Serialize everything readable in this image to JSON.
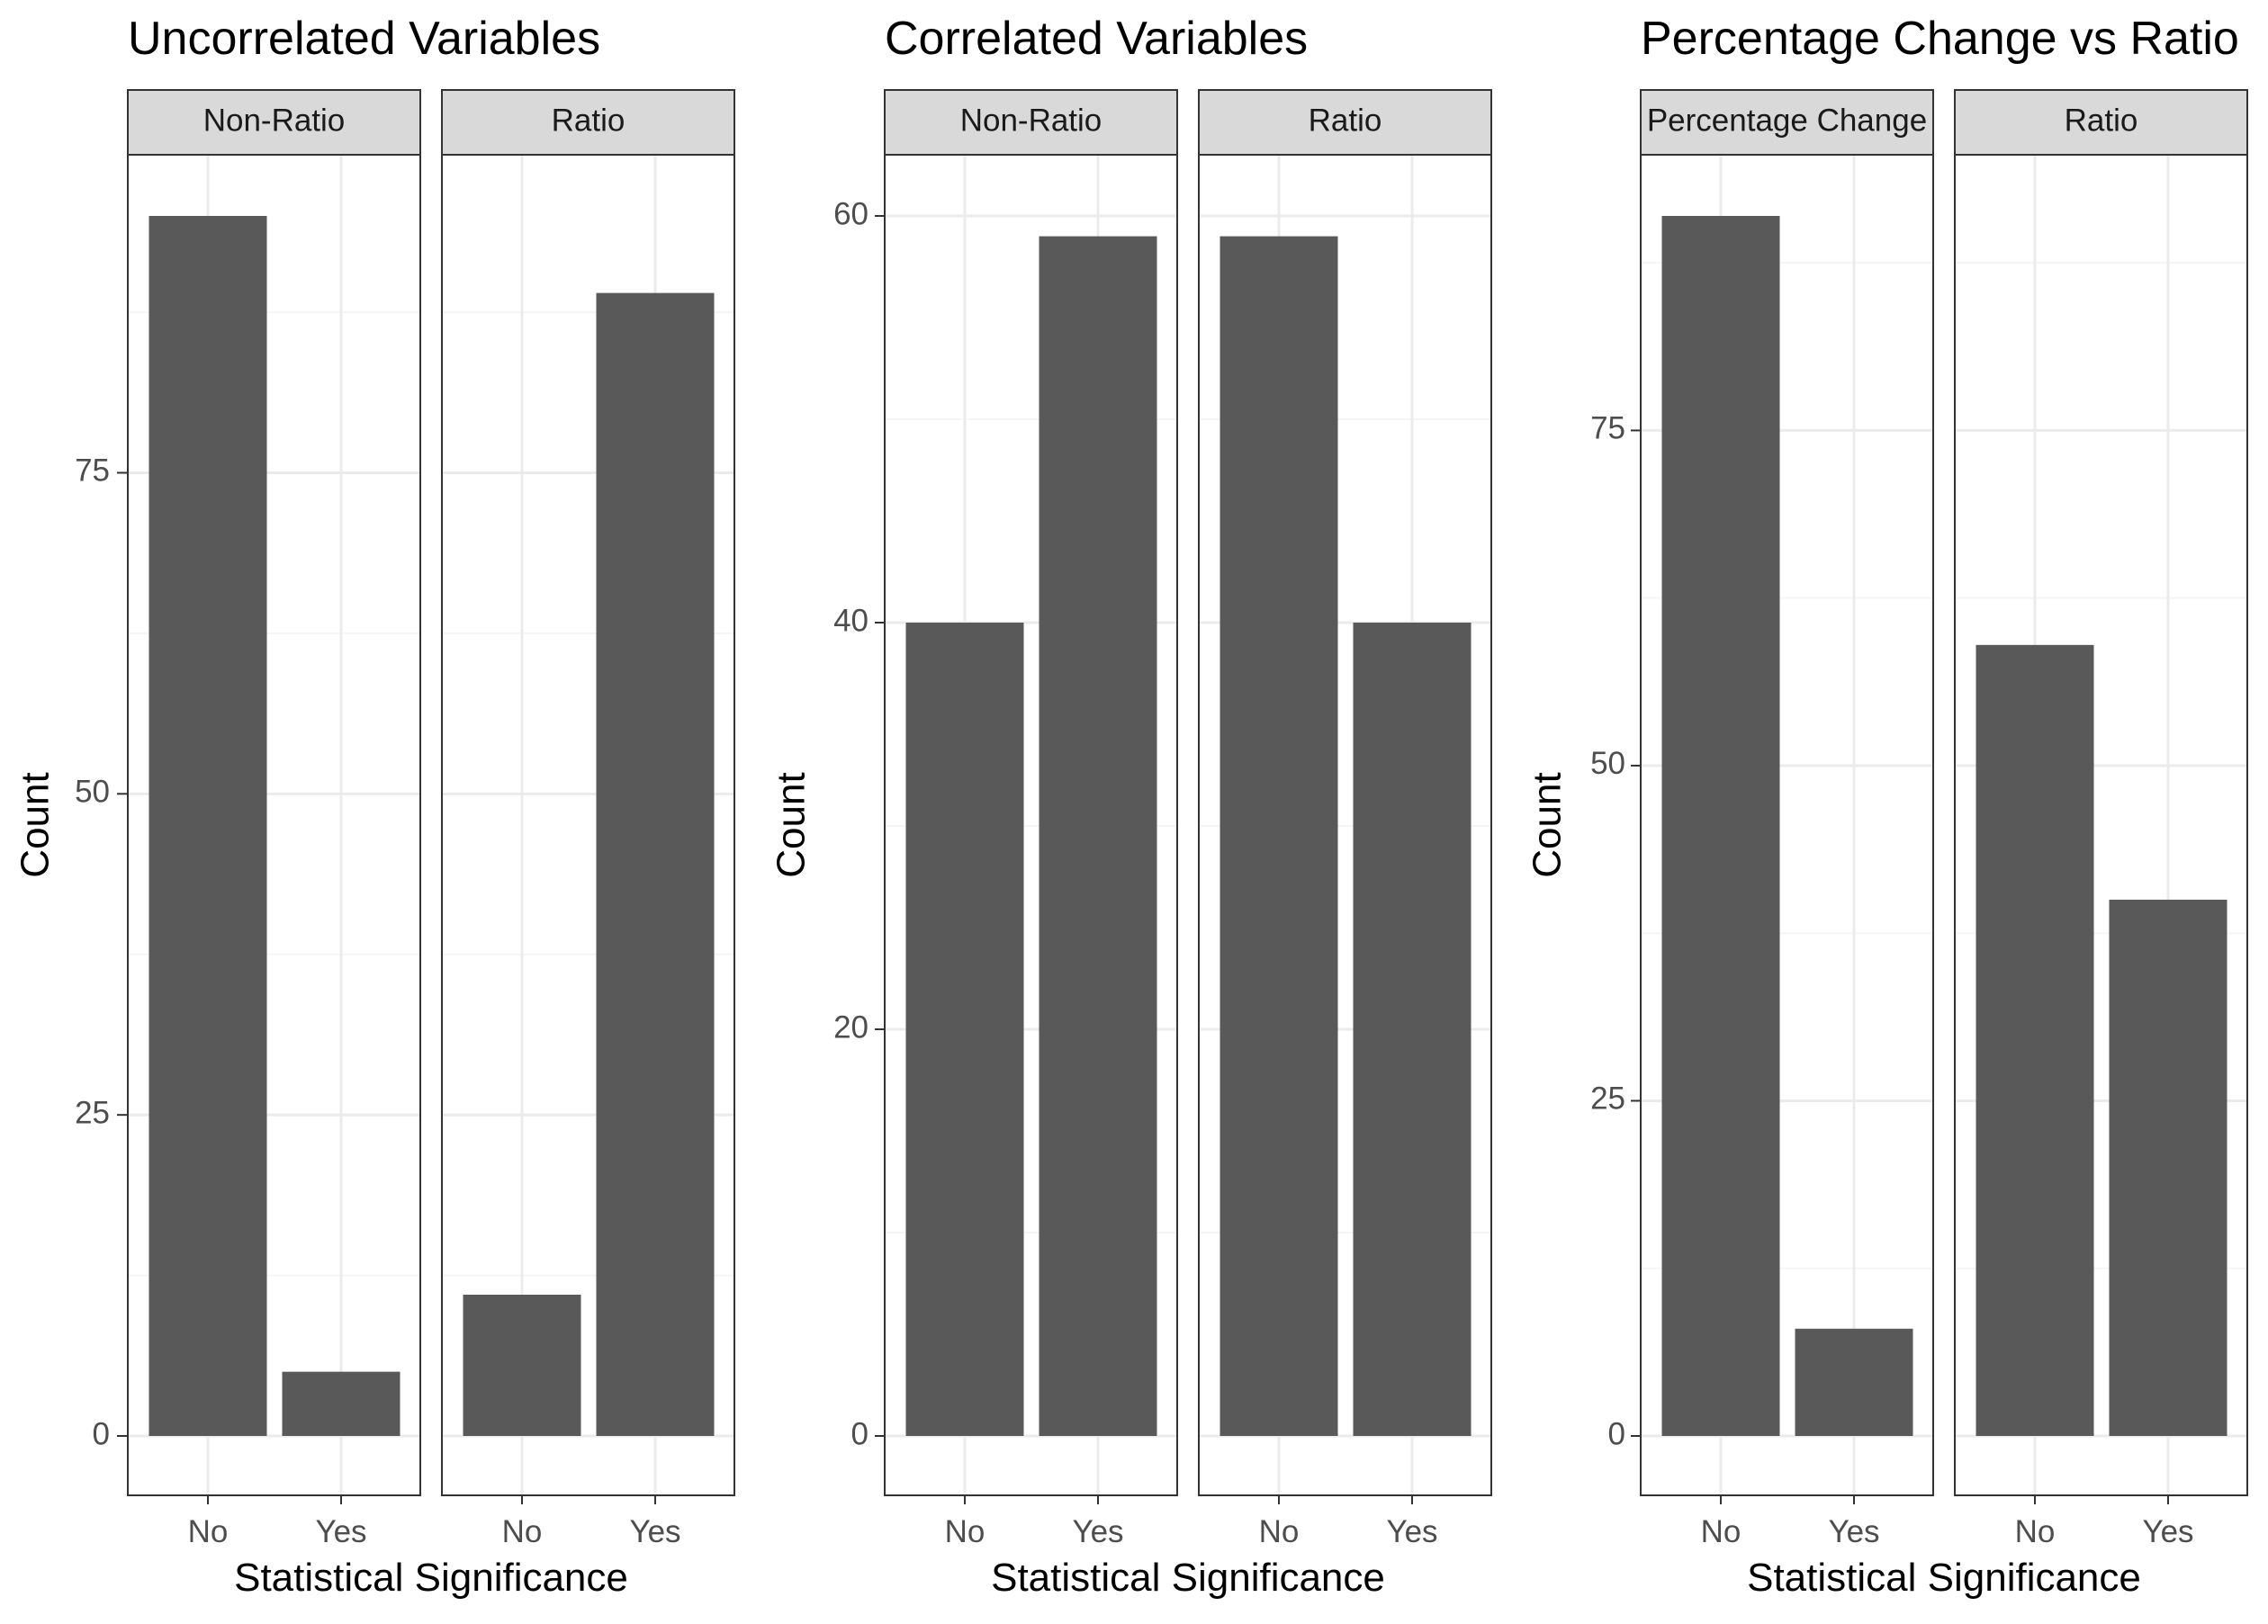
{
  "chart_data": [
    {
      "type": "bar",
      "title": "Uncorrelated Variables",
      "xlabel": "Statistical Significance",
      "ylabel": "Count",
      "ylim": [
        -3,
        95
      ],
      "yticks": [
        0,
        25,
        50,
        75
      ],
      "categories": [
        "No",
        "Yes"
      ],
      "grid": true,
      "panels": [
        {
          "label": "Non-Ratio",
          "values": [
            95,
            5
          ]
        },
        {
          "label": "Ratio",
          "values": [
            11,
            89
          ]
        }
      ]
    },
    {
      "type": "bar",
      "title": "Correlated Variables",
      "xlabel": "Statistical Significance",
      "ylabel": "Count",
      "ylim": [
        -3,
        60
      ],
      "yticks": [
        0,
        20,
        40,
        60
      ],
      "categories": [
        "No",
        "Yes"
      ],
      "grid": true,
      "panels": [
        {
          "label": "Non-Ratio",
          "values": [
            40,
            59
          ]
        },
        {
          "label": "Ratio",
          "values": [
            59,
            40
          ]
        }
      ]
    },
    {
      "type": "bar",
      "title": "Percentage Change vs Ratio",
      "xlabel": "Statistical Significance",
      "ylabel": "Count",
      "ylim": [
        -3,
        91
      ],
      "yticks": [
        0,
        25,
        50,
        75
      ],
      "categories": [
        "No",
        "Yes"
      ],
      "grid": true,
      "panels": [
        {
          "label": "Percentage Change",
          "values": [
            91,
            8
          ]
        },
        {
          "label": "Ratio",
          "values": [
            59,
            40
          ]
        }
      ]
    }
  ],
  "colors": {
    "bar": "#595959",
    "strip_fill": "#d9d9d9",
    "grid_major": "#ebebeb",
    "grid_minor": "#f5f5f5",
    "panel_border": "#333333"
  }
}
